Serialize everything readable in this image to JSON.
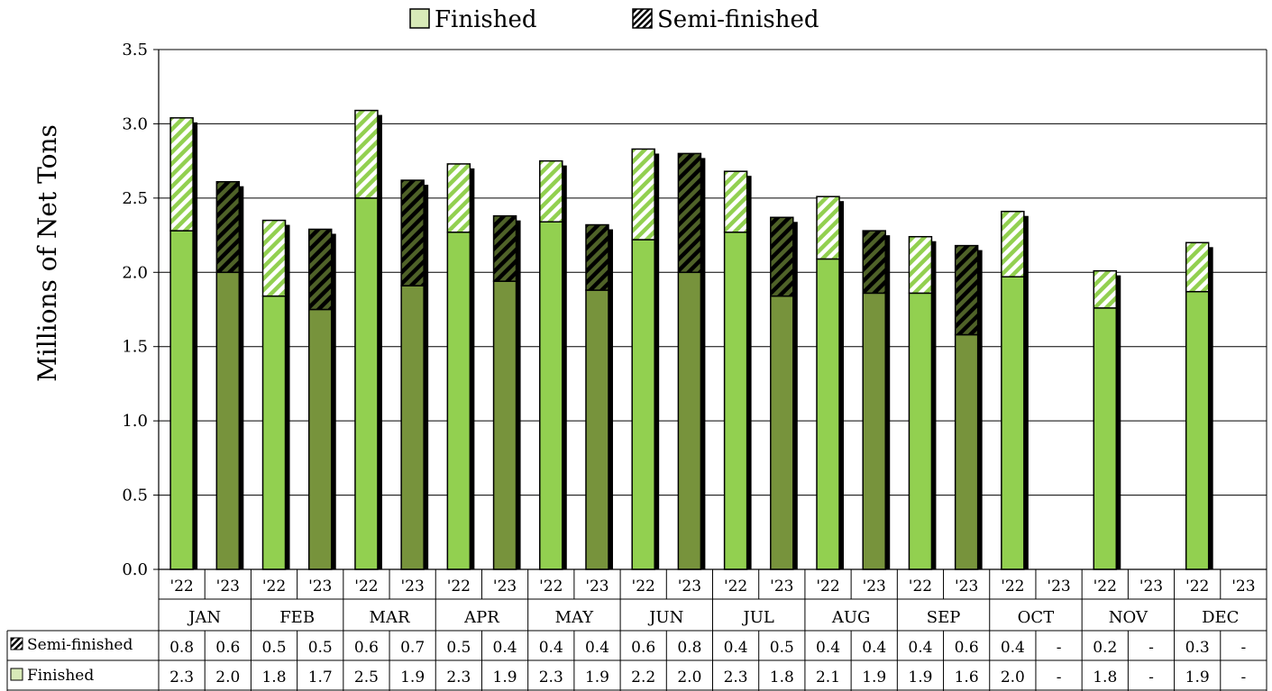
{
  "chart_data": {
    "type": "bar",
    "stacked": true,
    "ylabel": "Millions of Net Tons",
    "ylim": [
      0,
      3.5
    ],
    "yticks": [
      "0.0",
      "0.5",
      "1.0",
      "1.5",
      "2.0",
      "2.5",
      "3.0",
      "3.5"
    ],
    "grid": true,
    "legend_position": "top",
    "months": [
      "JAN",
      "FEB",
      "MAR",
      "APR",
      "MAY",
      "JUN",
      "JUL",
      "AUG",
      "SEP",
      "OCT",
      "NOV",
      "DEC"
    ],
    "years": [
      "'22",
      "'23"
    ],
    "categories": [
      "JAN '22",
      "JAN '23",
      "FEB '22",
      "FEB '23",
      "MAR '22",
      "MAR '23",
      "APR '22",
      "APR '23",
      "MAY '22",
      "MAY '23",
      "JUN '22",
      "JUN '23",
      "JUL '22",
      "JUL '23",
      "AUG '22",
      "AUG '23",
      "SEP '22",
      "SEP '23",
      "OCT '22",
      "OCT '23",
      "NOV '22",
      "NOV '23",
      "DEC '22",
      "DEC '23"
    ],
    "series": [
      {
        "name": "Finished",
        "values": [
          2.28,
          2.0,
          1.84,
          1.75,
          2.5,
          1.91,
          2.27,
          1.94,
          2.34,
          1.88,
          2.22,
          2.0,
          2.27,
          1.84,
          2.09,
          1.86,
          1.86,
          1.58,
          1.97,
          null,
          1.76,
          null,
          1.87,
          null
        ],
        "table_labels": [
          "2.3",
          "2.0",
          "1.8",
          "1.7",
          "2.5",
          "1.9",
          "2.3",
          "1.9",
          "2.3",
          "1.9",
          "2.2",
          "2.0",
          "2.3",
          "1.8",
          "2.1",
          "1.9",
          "1.9",
          "1.6",
          "2.0",
          "-",
          "1.8",
          "-",
          "1.9",
          "-"
        ]
      },
      {
        "name": "Semi-finished",
        "values": [
          0.76,
          0.61,
          0.51,
          0.54,
          0.59,
          0.71,
          0.46,
          0.44,
          0.41,
          0.44,
          0.61,
          0.8,
          0.41,
          0.53,
          0.42,
          0.42,
          0.38,
          0.6,
          0.44,
          null,
          0.25,
          null,
          0.33,
          null
        ],
        "table_labels": [
          "0.8",
          "0.6",
          "0.5",
          "0.5",
          "0.6",
          "0.7",
          "0.5",
          "0.4",
          "0.4",
          "0.4",
          "0.6",
          "0.8",
          "0.4",
          "0.5",
          "0.4",
          "0.4",
          "0.4",
          "0.6",
          "0.4",
          "-",
          "0.2",
          "-",
          "0.3",
          "-"
        ]
      }
    ]
  },
  "colors": {
    "finished_2022": "#92d050",
    "finished_2023": "#77933c",
    "semi_stripe_2022": "#92d050",
    "semi_stripe_2023": "#4f6228",
    "shadow": "#000000",
    "grid": "#000000"
  }
}
